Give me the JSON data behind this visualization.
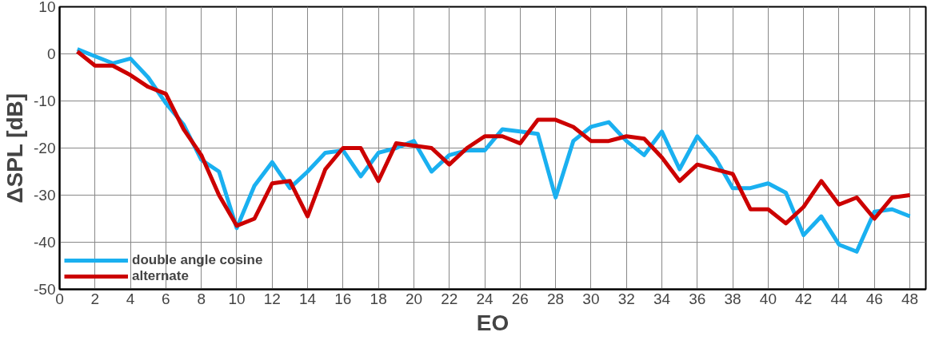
{
  "chart_data": {
    "type": "line",
    "xlabel": "EO",
    "ylabel": "ΔSPL [dB]",
    "x": [
      1,
      2,
      3,
      4,
      5,
      6,
      7,
      8,
      9,
      10,
      11,
      12,
      13,
      14,
      15,
      16,
      17,
      18,
      19,
      20,
      21,
      22,
      23,
      24,
      25,
      26,
      27,
      28,
      29,
      30,
      31,
      32,
      33,
      34,
      35,
      36,
      37,
      38,
      39,
      40,
      41,
      42,
      43,
      44,
      45,
      46,
      47,
      48
    ],
    "series": [
      {
        "name": "double angle cosine",
        "color": "#1ab0f0",
        "values": [
          1,
          -0.5,
          -2,
          -1,
          -5,
          -10.5,
          -15,
          -22.5,
          -25,
          -37,
          -28,
          -23,
          -28.5,
          -25,
          -21,
          -20.5,
          -26,
          -21,
          -20,
          -18.5,
          -25,
          -21.5,
          -20.5,
          -20.5,
          -16,
          -16.5,
          -17,
          -30.5,
          -18.5,
          -15.5,
          -14.5,
          -18.5,
          -21.5,
          -16.5,
          -24.5,
          -17.5,
          -22,
          -28.5,
          -28.5,
          -27.5,
          -29.5,
          -38.5,
          -34.5,
          -40.5,
          -42,
          -33.5,
          -33,
          -34.5
        ]
      },
      {
        "name": "alternate",
        "color": "#cc0000",
        "values": [
          0.5,
          -2.5,
          -2.5,
          -4.5,
          -7,
          -8.5,
          -16,
          -21.5,
          -30,
          -36.5,
          -35,
          -27.5,
          -27,
          -34.5,
          -24.5,
          -20,
          -20,
          -27,
          -19,
          -19.5,
          -20,
          -23.5,
          -20,
          -17.5,
          -17.5,
          -19,
          -14,
          -14,
          -15.5,
          -18.5,
          -18.5,
          -17.5,
          -18,
          -22,
          -27,
          -23.5,
          -24.5,
          -25.5,
          -33,
          -33,
          -36,
          -32.5,
          -27,
          -32,
          -30.5,
          -35,
          -30.5,
          -30
        ]
      }
    ],
    "xlim": [
      0,
      48.9
    ],
    "ylim": [
      -50,
      10
    ],
    "xticks": [
      0,
      2,
      4,
      6,
      8,
      10,
      12,
      14,
      16,
      18,
      20,
      22,
      24,
      26,
      28,
      30,
      32,
      34,
      36,
      38,
      40,
      42,
      44,
      46,
      48
    ],
    "yticks": [
      -50,
      -40,
      -30,
      -20,
      -10,
      0,
      10
    ],
    "grid": true,
    "legend": "bottom left",
    "line_style": "solid",
    "marker": "none"
  }
}
